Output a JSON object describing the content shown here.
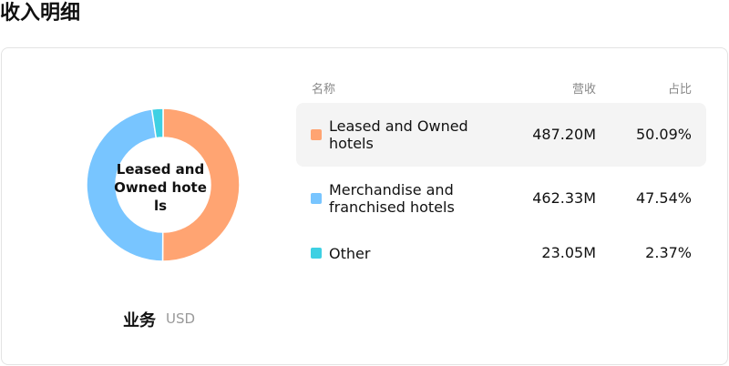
{
  "header": {
    "title": "收入明细"
  },
  "chart_data": {
    "type": "donut",
    "categories": [
      "Leased and Owned hotels",
      "Merchandise and franchised hotels",
      "Other"
    ],
    "values": [
      50.09,
      47.54,
      2.37
    ],
    "value_labels": [
      "50.09%",
      "47.54%",
      "2.37%"
    ],
    "revenue_labels": [
      "487.20M",
      "462.33M",
      "23.05M"
    ],
    "colors": [
      "#ffa472",
      "#78c5ff",
      "#3ed0e3"
    ],
    "columns": [
      "名称",
      "营收",
      "占比"
    ],
    "caption": "业务",
    "unit": "USD"
  }
}
